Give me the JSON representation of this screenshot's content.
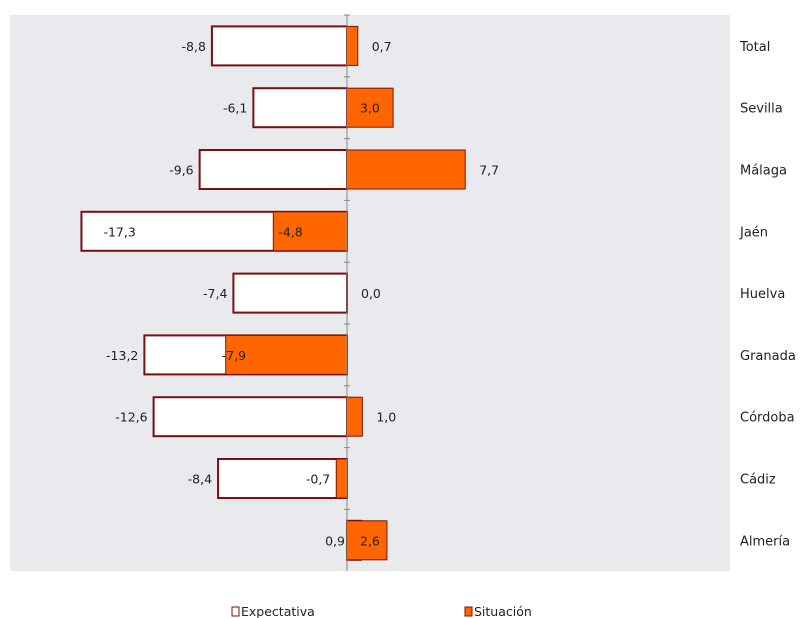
{
  "chart_data": {
    "type": "bar",
    "orientation": "horizontal",
    "categories": [
      "Total",
      "Sevilla",
      "Málaga",
      "Jaén",
      "Huelva",
      "Granada",
      "Córdoba",
      "Cádiz",
      "Almería"
    ],
    "series": [
      {
        "name": "Expectativa",
        "values": [
          -8.8,
          -6.1,
          -9.6,
          -17.3,
          -7.4,
          -13.2,
          -12.6,
          -8.4,
          0.9
        ],
        "labels": [
          "-8,8",
          "-6,1",
          "-9,6",
          "-17,3",
          "-7,4",
          "-13,2",
          "-12,6",
          "-8,4",
          "0,9"
        ],
        "fill": "#ffffff",
        "stroke": "#7a0f0f"
      },
      {
        "name": "Situación",
        "values": [
          0.7,
          3.0,
          7.7,
          -4.8,
          0.0,
          -7.9,
          1.0,
          -0.7,
          2.6
        ],
        "labels": [
          "0,7",
          "3,0",
          "7,7",
          "-4,8",
          "0,0",
          "-7,9",
          "1,0",
          "-0,7",
          "2,6"
        ],
        "fill": "#ff6600",
        "stroke": "#7a0f0f"
      }
    ],
    "xlim": [
      -17.3,
      24.0
    ],
    "legend_position": "bottom",
    "colors": {
      "plot_background": "#e8eaed",
      "axis": "#888888"
    }
  }
}
